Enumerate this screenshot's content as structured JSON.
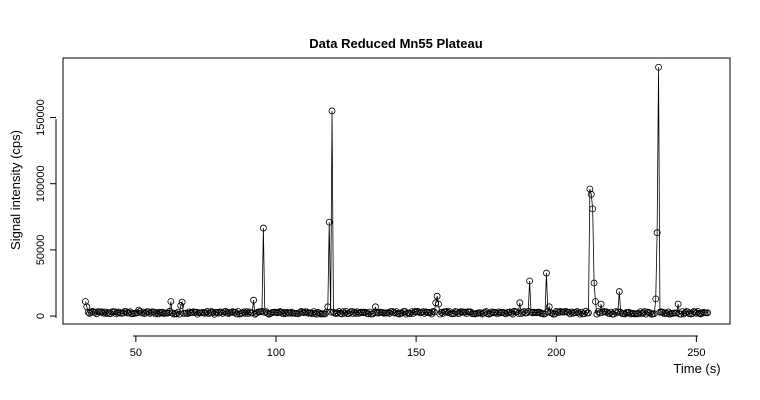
{
  "chart_data": {
    "type": "line",
    "title": "Data Reduced Mn55 Plateau",
    "xlabel": "Time (s)",
    "ylabel": "Signal intensity (cps)",
    "xlim": [
      24,
      262
    ],
    "ylim": [
      -6000,
      195000
    ],
    "x_ticks": [
      50,
      100,
      150,
      200,
      250
    ],
    "y_ticks": [
      0,
      50000,
      100000,
      150000
    ],
    "x_tick_labels": [
      "50",
      "100",
      "150",
      "200",
      "250"
    ],
    "y_tick_labels": [
      "0",
      "50000",
      "100000",
      "150000"
    ],
    "grid": false,
    "legend": "none",
    "marker": "open-circle",
    "line_color": "#000000",
    "x_start": 32,
    "x_end": 254,
    "x_step": 0.5,
    "baseline": 2500,
    "peaks": [
      {
        "x": 32,
        "y": 11000
      },
      {
        "x": 32.5,
        "y": 7000
      },
      {
        "x": 51,
        "y": 4500
      },
      {
        "x": 62.5,
        "y": 11000
      },
      {
        "x": 66.5,
        "y": 10500
      },
      {
        "x": 66,
        "y": 8000
      },
      {
        "x": 92,
        "y": 12000
      },
      {
        "x": 95.5,
        "y": 66500
      },
      {
        "x": 119,
        "y": 71000
      },
      {
        "x": 120,
        "y": 155000
      },
      {
        "x": 118.5,
        "y": 7000
      },
      {
        "x": 135.5,
        "y": 7000
      },
      {
        "x": 157,
        "y": 10000
      },
      {
        "x": 157.5,
        "y": 15000
      },
      {
        "x": 158,
        "y": 9000
      },
      {
        "x": 187,
        "y": 10000
      },
      {
        "x": 190.5,
        "y": 26500
      },
      {
        "x": 196.5,
        "y": 32500
      },
      {
        "x": 197.5,
        "y": 7000
      },
      {
        "x": 212,
        "y": 96000
      },
      {
        "x": 212.5,
        "y": 92000
      },
      {
        "x": 213,
        "y": 81000
      },
      {
        "x": 213.5,
        "y": 25000
      },
      {
        "x": 214,
        "y": 11000
      },
      {
        "x": 216,
        "y": 9000
      },
      {
        "x": 222.5,
        "y": 18500
      },
      {
        "x": 235.5,
        "y": 13000
      },
      {
        "x": 236,
        "y": 63000
      },
      {
        "x": 236.5,
        "y": 188000
      },
      {
        "x": 243.5,
        "y": 9000
      }
    ]
  }
}
